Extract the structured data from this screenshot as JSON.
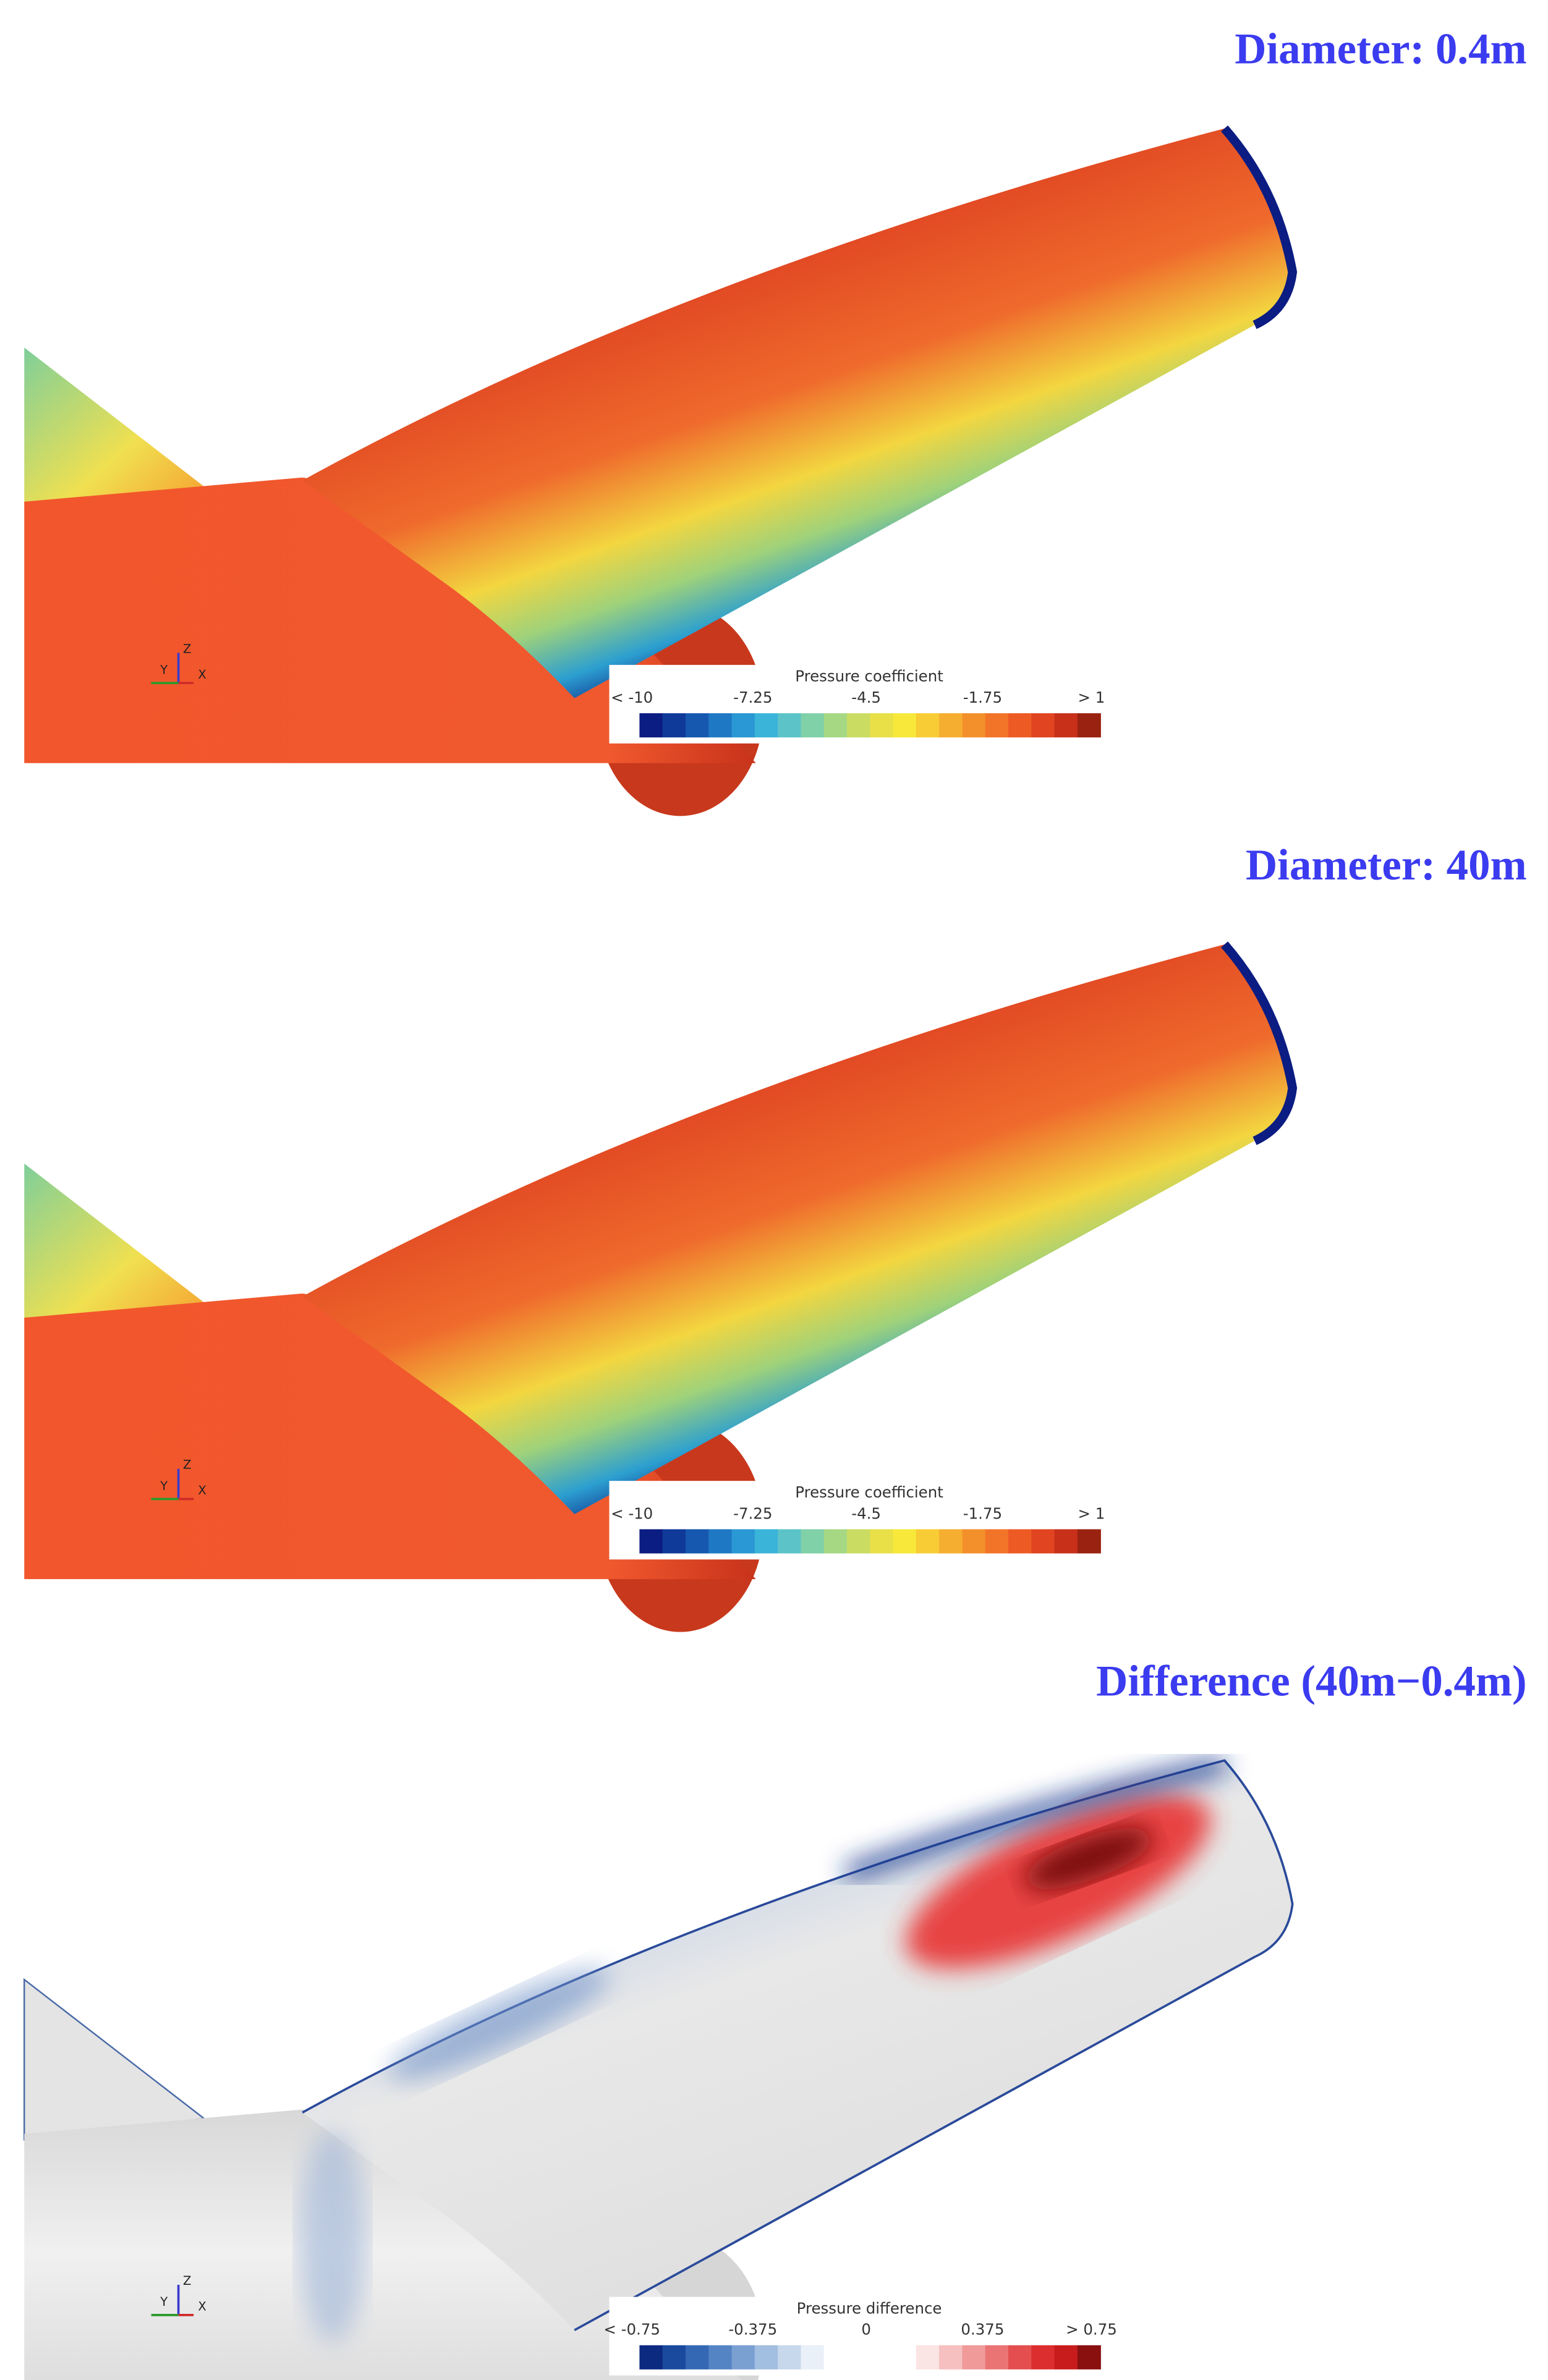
{
  "panels": [
    {
      "title": "Diameter: 0.4m",
      "legend": {
        "title": "Pressure coefficient",
        "ticks": [
          "< -10",
          "-7.25",
          "-4.5",
          "-1.75",
          "> 1"
        ]
      },
      "triad": {
        "y": "Y",
        "z": "Z",
        "x": "X"
      }
    },
    {
      "title": "Diameter: 40m",
      "legend": {
        "title": "Pressure coefficient",
        "ticks": [
          "< -10",
          "-7.25",
          "-4.5",
          "-1.75",
          "> 1"
        ]
      },
      "triad": {
        "y": "Y",
        "z": "Z",
        "x": "X"
      }
    },
    {
      "title": "Difference (40m−0.4m)",
      "legend": {
        "title": "Pressure difference",
        "ticks": [
          "< -0.75",
          "-0.375",
          "0",
          "0.375",
          "> 0.75"
        ]
      },
      "triad": {
        "y": "Y",
        "z": "Z",
        "x": "X"
      }
    }
  ]
}
